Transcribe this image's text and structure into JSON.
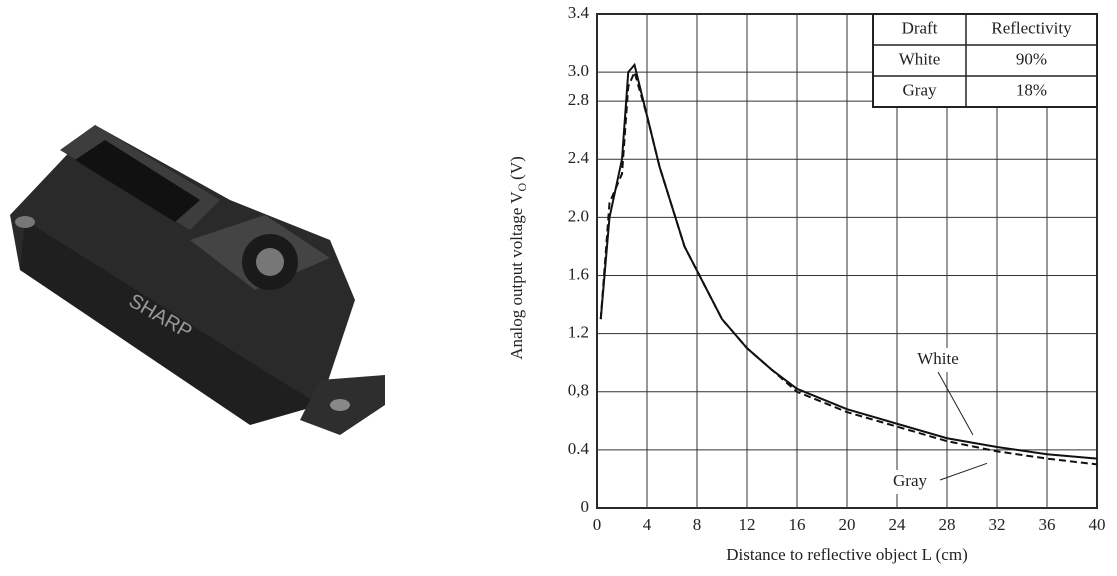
{
  "chart_data": {
    "type": "line",
    "xlabel": "Distance to reflective object L (cm)",
    "ylabel": "Analog output voltage V",
    "ylabel_sub": "O",
    "ylabel_unit": "(V)",
    "x": [
      0.3,
      1,
      2,
      2.5,
      3,
      4,
      5,
      7,
      10,
      12,
      14,
      16,
      20,
      24,
      28,
      32,
      36,
      40
    ],
    "series": [
      {
        "name": "White",
        "color": "#111",
        "dash": false,
        "values": [
          1.3,
          2.0,
          2.4,
          3.0,
          3.05,
          2.7,
          2.35,
          1.8,
          1.3,
          1.1,
          0.95,
          0.82,
          0.68,
          0.58,
          0.48,
          0.42,
          0.37,
          0.34
        ]
      },
      {
        "name": "Gray",
        "color": "#111",
        "dash": true,
        "values": [
          1.3,
          2.1,
          2.3,
          2.9,
          3.0,
          2.7,
          2.35,
          1.8,
          1.3,
          1.1,
          0.95,
          0.8,
          0.66,
          0.56,
          0.46,
          0.39,
          0.34,
          0.3
        ]
      }
    ],
    "xlim": [
      0,
      40
    ],
    "ylim": [
      0,
      3.4
    ],
    "xticks": [
      0,
      4,
      8,
      12,
      16,
      20,
      24,
      28,
      32,
      36,
      40
    ],
    "yticks": [
      0,
      0.4,
      {
        "value": 0.8,
        "label": "0,8"
      },
      1.2,
      1.6,
      {
        "value": 2,
        "label": "2.0"
      },
      2.4,
      2.8,
      {
        "value": 3,
        "label": "3.0"
      },
      3.4
    ],
    "grid": true,
    "legend_table": {
      "header": [
        "Draft",
        "Reflectivity"
      ],
      "rows": [
        [
          "White",
          "90%"
        ],
        [
          "Gray",
          "18%"
        ]
      ]
    }
  }
}
